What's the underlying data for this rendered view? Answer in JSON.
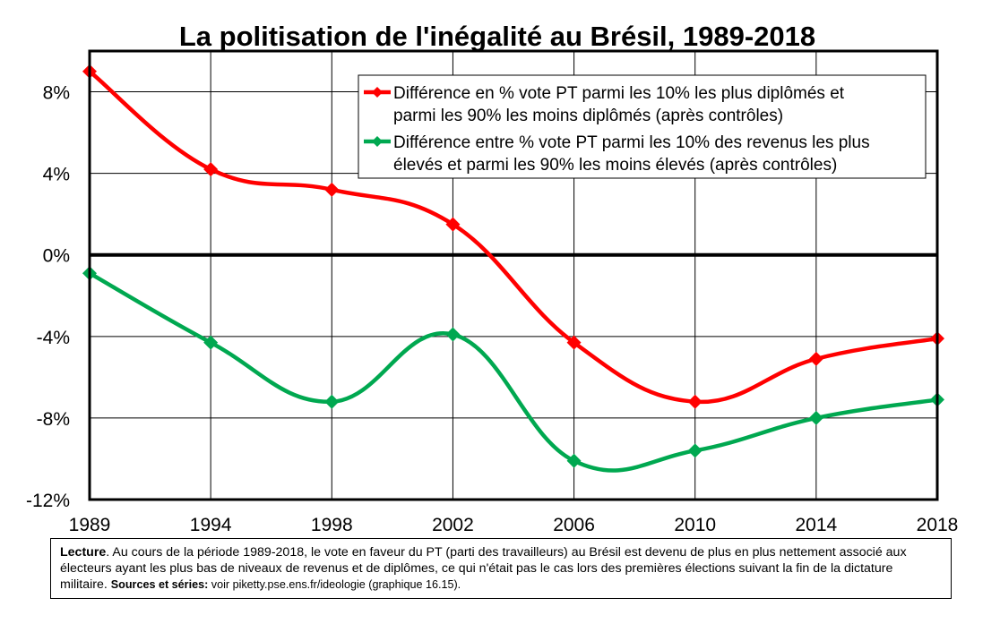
{
  "chart_data": {
    "type": "line",
    "title": "La politisation de l'inégalité au Brésil, 1989-2018",
    "x": [
      "1989",
      "1994",
      "1998",
      "2002",
      "2006",
      "2010",
      "2014",
      "2018"
    ],
    "ylim": [
      -12,
      10
    ],
    "yticks": [
      8,
      4,
      0,
      -4,
      -8,
      -12
    ],
    "ytick_labels": [
      "8%",
      "4%",
      "0%",
      "-4%",
      "-8%",
      "-12%"
    ],
    "xlabel": "",
    "ylabel": "",
    "grid": true,
    "legend_position": "top-right",
    "series": [
      {
        "name_lines": [
          "Différence en % vote PT parmi les 10% les plus diplômés et",
          "parmi les 90% les moins diplômés (après contrôles)"
        ],
        "color": "#ff0000",
        "marker": "diamond",
        "values": [
          9.0,
          4.2,
          3.2,
          1.5,
          -4.3,
          -7.2,
          -5.1,
          -4.1
        ]
      },
      {
        "name_lines": [
          "Différence entre % vote PT parmi les 10% des revenus les plus",
          "élevés et parmi les 90% les moins élevés (après contrôles)"
        ],
        "color": "#00a850",
        "marker": "diamond",
        "values": [
          -0.9,
          -4.3,
          -7.2,
          -3.9,
          -10.1,
          -9.6,
          -8.0,
          -7.1
        ]
      }
    ]
  },
  "note": {
    "lecture_label": "Lecture",
    "lecture_text": ". Au cours de la période 1989-2018, le vote en faveur du PT (parti des travailleurs) au Brésil est devenu de plus en plus nettement associé aux électeurs ayant les plus bas de niveaux de revenus et de diplômes, ce qui n'était pas le cas lors des premières élections suivant la fin de la dictature militaire. ",
    "sources_label": "Sources et séries:",
    "sources_text": " voir piketty.pse.ens.fr/ideologie (graphique 16.15)."
  }
}
